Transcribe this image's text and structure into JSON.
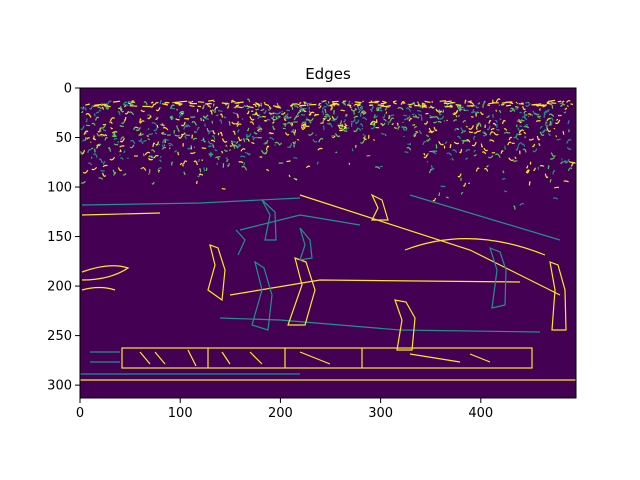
{
  "title": "Edges",
  "image": {
    "colormap": "viridis",
    "background_color": "#440154",
    "edge_colors": [
      "#fde725",
      "#21918c",
      "#5ec962"
    ],
    "x_extent": [
      0,
      495
    ],
    "y_extent": [
      0,
      313
    ]
  },
  "axes": {
    "x_ticks": [
      0,
      100,
      200,
      300,
      400
    ],
    "y_ticks": [
      0,
      50,
      100,
      150,
      200,
      250,
      300
    ]
  }
}
